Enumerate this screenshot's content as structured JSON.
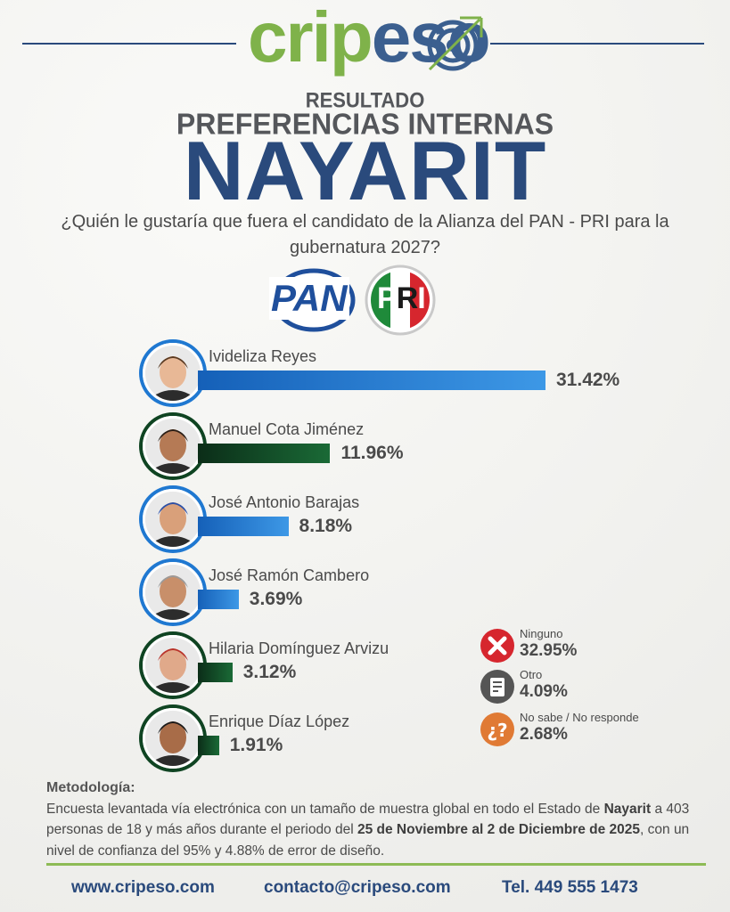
{
  "brand": {
    "logo_text_green": "crip",
    "logo_text_blue": "eso"
  },
  "header": {
    "line1": "RESULTADO",
    "line2": "PREFERENCIAS INTERNAS",
    "line3": "NAYARIT",
    "question": "¿Quién le gustaría que fuera el candidato de la Alianza del PAN - PRI para la gubernatura 2027?"
  },
  "parties": {
    "pan": "PAN",
    "pri_p": "P",
    "pri_r": "R",
    "pri_i": "I"
  },
  "chart_data": {
    "type": "bar",
    "title": "",
    "xlabel": "",
    "ylabel": "",
    "categories": [
      "Ivideliza Reyes",
      "Manuel Cota Jiménez",
      "José Antonio Barajas",
      "José Ramón Cambero",
      "Hilaria Domínguez Arvizu",
      "Enrique Díaz López"
    ],
    "values": [
      31.42,
      11.96,
      8.18,
      3.69,
      3.12,
      1.91
    ],
    "labels": [
      "31.42%",
      "11.96%",
      "8.18%",
      "3.69%",
      "3.12%",
      "1.91%"
    ],
    "bar_colors": [
      "blue",
      "green",
      "blue",
      "blue",
      "green",
      "green"
    ],
    "extra": [
      {
        "label": "Ninguno",
        "value": 32.95,
        "text": "32.95%",
        "icon": "x-icon"
      },
      {
        "label": "Otro",
        "value": 4.09,
        "text": "4.09%",
        "icon": "ballot-icon"
      },
      {
        "label": "No sabe / No responde",
        "value": 2.68,
        "text": "2.68%",
        "icon": "question-icon"
      }
    ]
  },
  "colors": {
    "blue": "#1560b8",
    "green": "#0d3a1f",
    "navy": "#2a4a7c",
    "lime": "#8dbb55",
    "red": "#d6262e",
    "orange": "#e07a34"
  },
  "methodology": {
    "title": "Metodología:",
    "p1": "Encuesta levantada vía electrónica con un tamaño de muestra global en todo el Estado de ",
    "b1": "Nayarit",
    "p2": " a 403 personas de 18 y más años durante el periodo del ",
    "b2": "25 de Noviembre al 2 de Diciembre de 2025",
    "p3": ", con un nivel de confianza del 95% y 4.88% de error de diseño."
  },
  "footer": {
    "web": "www.cripeso.com",
    "email": "contacto@cripeso.com",
    "phone": "Tel. 449 555 1473"
  }
}
